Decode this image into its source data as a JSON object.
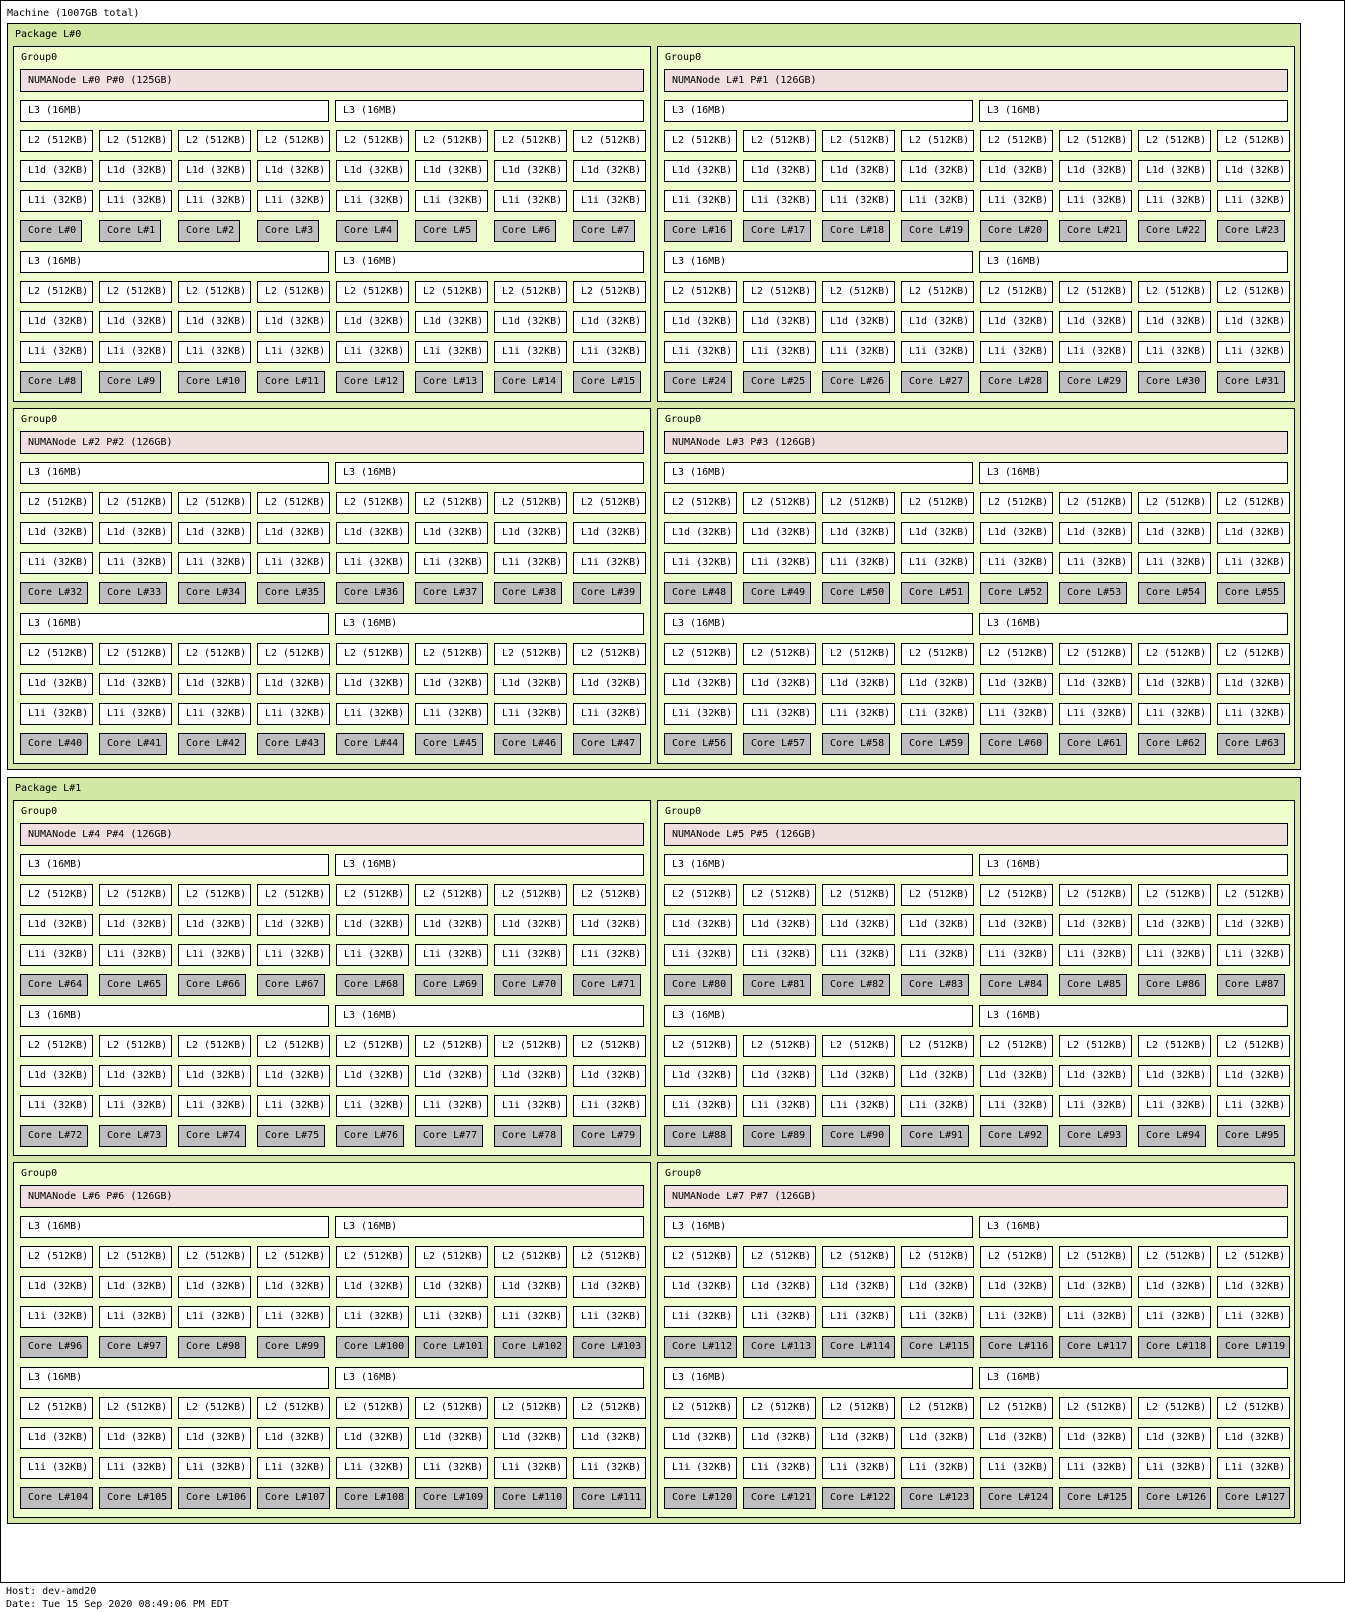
{
  "machine": {
    "label": "Machine (1007GB total)"
  },
  "footer": {
    "host": "Host: dev-amd20",
    "date": "Date: Tue 15 Sep 2020 08:49:06 PM EDT"
  },
  "labels": {
    "group": "Group0",
    "l3": "L3 (16MB)",
    "l2": "L2 (512KB)",
    "l1d": "L1d (32KB)",
    "l1i": "L1i (32KB)",
    "core_prefix": "Core L#"
  },
  "colors": {
    "package": "#d2e7a4",
    "group": "#efffcd",
    "numa": "#efdfde",
    "cache": "#ffffff",
    "core": "#bebebe"
  },
  "packages": [
    {
      "label": "Package L#0",
      "groups": [
        {
          "numa": "NUMANode L#0 P#0 (125GB)",
          "core_start": 0
        },
        {
          "numa": "NUMANode L#1 P#1 (126GB)",
          "core_start": 16
        },
        {
          "numa": "NUMANode L#2 P#2 (126GB)",
          "core_start": 32
        },
        {
          "numa": "NUMANode L#3 P#3 (126GB)",
          "core_start": 48
        }
      ]
    },
    {
      "label": "Package L#1",
      "groups": [
        {
          "numa": "NUMANode L#4 P#4 (126GB)",
          "core_start": 64
        },
        {
          "numa": "NUMANode L#5 P#5 (126GB)",
          "core_start": 80
        },
        {
          "numa": "NUMANode L#6 P#6 (126GB)",
          "core_start": 96
        },
        {
          "numa": "NUMANode L#7 P#7 (126GB)",
          "core_start": 112
        }
      ]
    }
  ]
}
